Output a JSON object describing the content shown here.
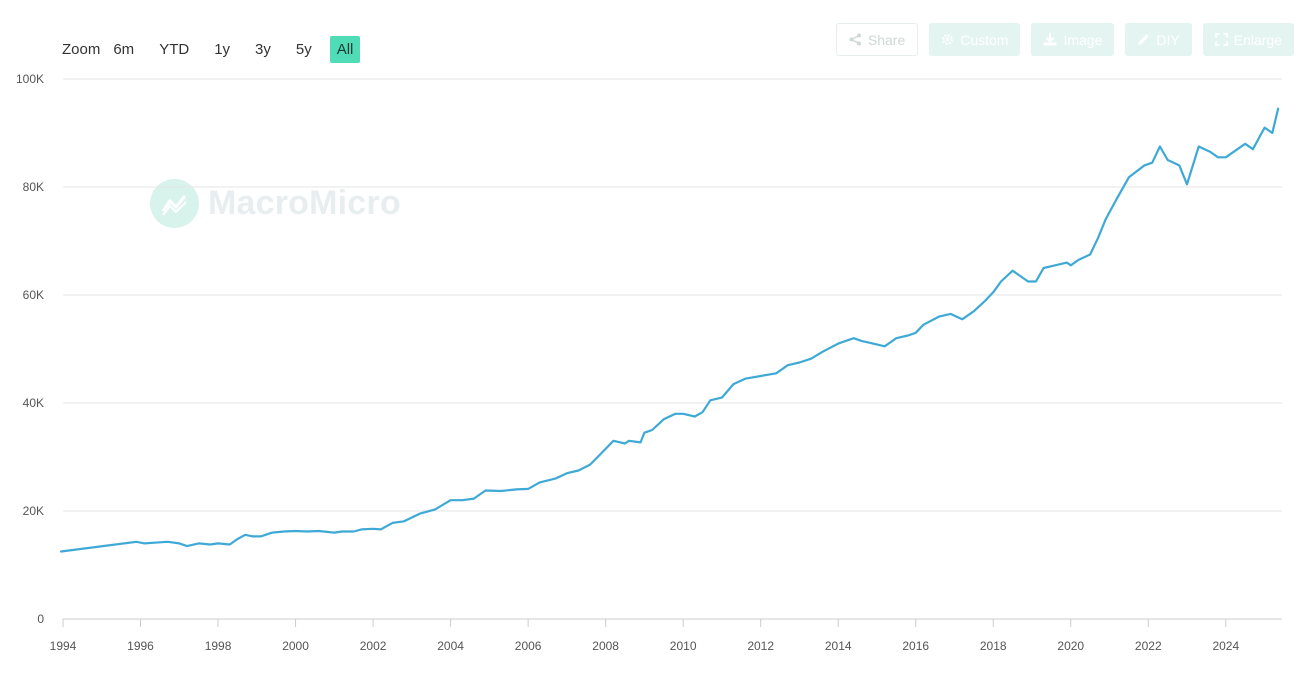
{
  "zoom": {
    "label": "Zoom",
    "options": [
      "6m",
      "YTD",
      "1y",
      "3y",
      "5y",
      "All"
    ],
    "active": "All"
  },
  "toolbar": {
    "share": "Share",
    "custom": "Custom",
    "image": "Image",
    "diy": "DIY",
    "enlarge": "Enlarge"
  },
  "watermark": {
    "text": "MacroMicro"
  },
  "colors": {
    "line": "#3fa9d6",
    "accent": "#4fdcb6",
    "grid": "#e6e6e6"
  },
  "chart_data": {
    "type": "line",
    "title": "",
    "xlabel": "",
    "ylabel": "",
    "xlim": [
      1994,
      2025.45
    ],
    "ylim": [
      0,
      100000
    ],
    "y_ticks": [
      0,
      20000,
      40000,
      60000,
      80000,
      100000
    ],
    "y_tick_labels": [
      "0",
      "20K",
      "40K",
      "60K",
      "80K",
      "100K"
    ],
    "x_ticks": [
      1994,
      1996,
      1998,
      2000,
      2002,
      2004,
      2006,
      2008,
      2010,
      2012,
      2014,
      2016,
      2018,
      2020,
      2022,
      2024
    ],
    "x_tick_labels": [
      "1994",
      "1996",
      "1998",
      "2000",
      "2002",
      "2004",
      "2006",
      "2008",
      "2010",
      "2012",
      "2014",
      "2016",
      "2018",
      "2020",
      "2022",
      "2024"
    ],
    "grid": true,
    "legend": "none",
    "series": [
      {
        "x": [
          1993.95,
          1995.9,
          1996.1,
          1996.5,
          1996.7,
          1997.0,
          1997.2,
          1997.5,
          1997.8,
          1998.0,
          1998.3,
          1998.5,
          1998.7,
          1998.9,
          1999.1,
          1999.4,
          1999.7,
          2000.0,
          2000.3,
          2000.6,
          2001.0,
          2001.2,
          2001.5,
          2001.7,
          2002.0,
          2002.2,
          2002.5,
          2002.8,
          2003.2,
          2003.6,
          2004.0,
          2004.3,
          2004.6,
          2004.9,
          2005.3,
          2005.7,
          2006.0,
          2006.3,
          2006.7,
          2007.0,
          2007.3,
          2007.6,
          2008.0,
          2008.2,
          2008.5,
          2008.6,
          2008.9,
          2009.0,
          2009.2,
          2009.5,
          2009.8,
          2010.0,
          2010.3,
          2010.5,
          2010.7,
          2011.0,
          2011.3,
          2011.6,
          2012.0,
          2012.4,
          2012.7,
          2013.0,
          2013.3,
          2013.6,
          2014.0,
          2014.4,
          2014.6,
          2014.9,
          2015.2,
          2015.5,
          2015.8,
          2016.0,
          2016.2,
          2016.6,
          2016.9,
          2017.2,
          2017.5,
          2017.8,
          2018.0,
          2018.2,
          2018.5,
          2018.7,
          2018.9,
          2019.1,
          2019.3,
          2019.6,
          2019.9,
          2020.0,
          2020.2,
          2020.5,
          2020.7,
          2020.9,
          2021.2,
          2021.5,
          2021.9,
          2022.1,
          2022.3,
          2022.5,
          2022.8,
          2023.0,
          2023.3,
          2023.6,
          2023.8,
          2024.0,
          2024.3,
          2024.5,
          2024.7,
          2025.0,
          2025.2,
          2025.35
        ],
        "y": [
          12500,
          14300,
          14000,
          14200,
          14300,
          14000,
          13500,
          14000,
          13800,
          14000,
          13800,
          14800,
          15600,
          15300,
          15300,
          16000,
          16200,
          16300,
          16200,
          16300,
          16000,
          16200,
          16200,
          16600,
          16700,
          16600,
          17800,
          18100,
          19500,
          20300,
          22000,
          22000,
          22300,
          23800,
          23700,
          24000,
          24100,
          25300,
          26000,
          27000,
          27500,
          28600,
          31500,
          33000,
          32500,
          33000,
          32700,
          34500,
          35000,
          37000,
          38000,
          38000,
          37500,
          38300,
          40500,
          41000,
          43500,
          44500,
          45000,
          45500,
          47000,
          47500,
          48200,
          49500,
          51000,
          52000,
          51500,
          51000,
          50500,
          52000,
          52500,
          53000,
          54500,
          56000,
          56500,
          55500,
          57000,
          59000,
          60500,
          62500,
          64500,
          63500,
          62500,
          62500,
          65000,
          65500,
          66000,
          65500,
          66500,
          67500,
          70500,
          74000,
          78000,
          81800,
          84000,
          84500,
          87500,
          85000,
          84000,
          80500,
          87500,
          86500,
          85500,
          85500,
          87000,
          88000,
          87000,
          91000,
          90000,
          94500
        ]
      }
    ]
  }
}
